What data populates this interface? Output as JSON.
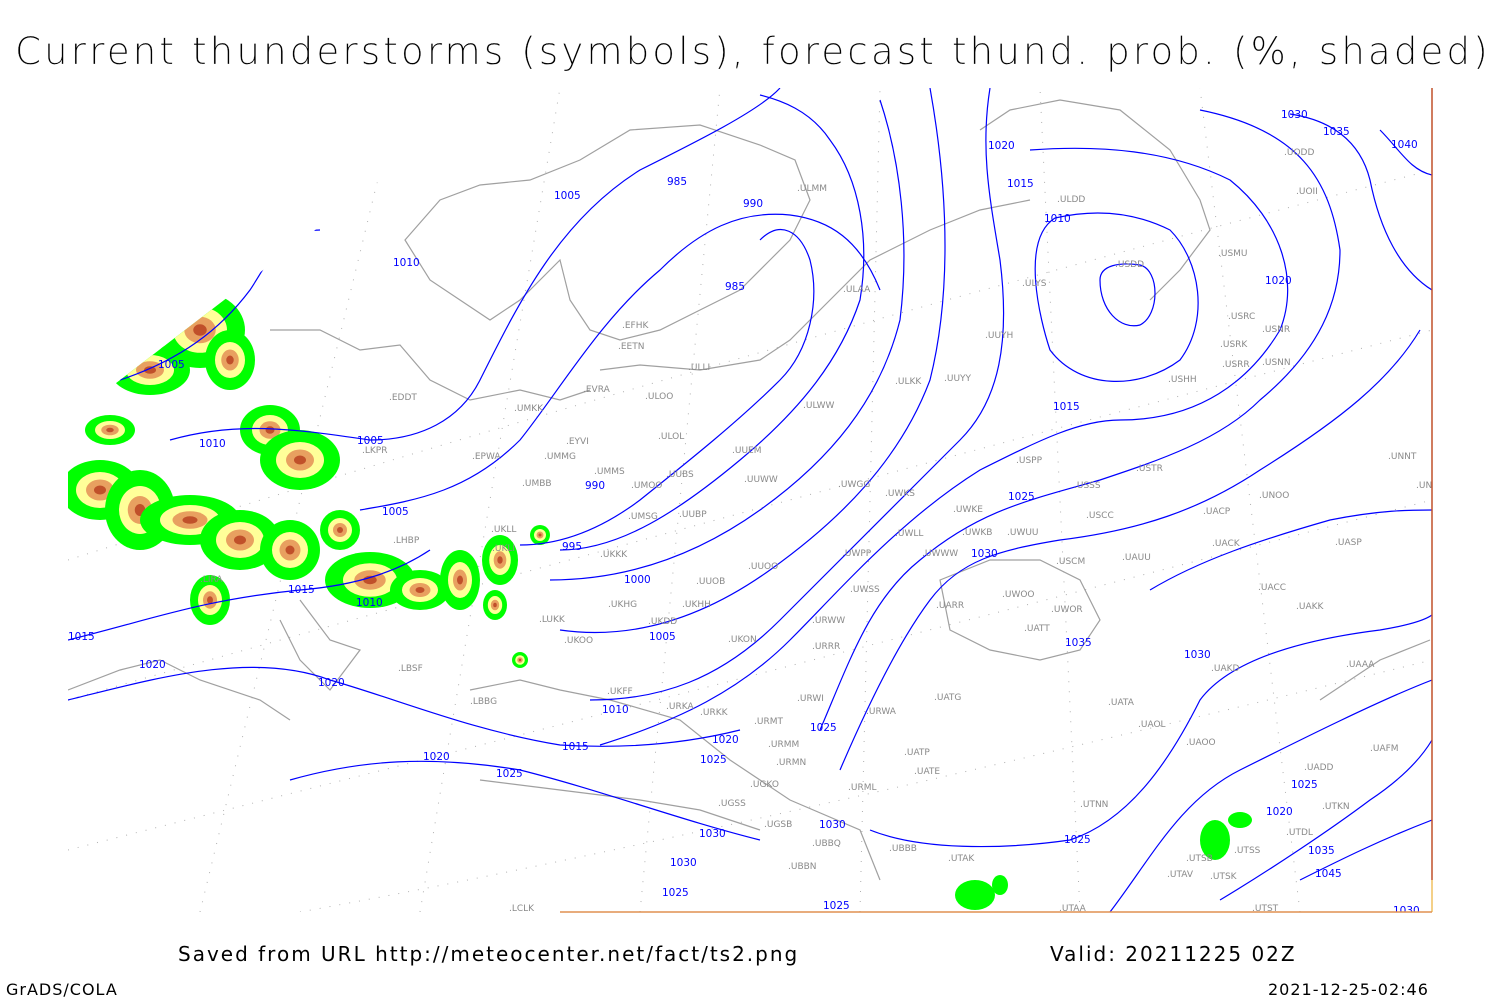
{
  "title": "Current thunderstorms (symbols), forecast thund. prob. (%, shaded)",
  "footer": {
    "saved_from": "Saved from URL http://meteocenter.net/fact/ts2.png",
    "valid": "Valid: 20211225 02Z",
    "software": "GrADS/COLA",
    "timestamp": "2021-12-25-02:46"
  },
  "colors": {
    "isobar": "#0000ff",
    "coastline": "#a0a0a0",
    "graticule": "#a0a0a0",
    "prob_low": "#00ff00",
    "prob_mid": "#ffff99",
    "prob_high": "#e8a060",
    "prob_max": "#c0502a"
  },
  "isobar_labels": [
    "1005",
    "985",
    "990",
    "1010",
    "985",
    "1020",
    "1015",
    "1010",
    "1020",
    "1015",
    "1030",
    "1035",
    "1040",
    "1005",
    "1010",
    "1005",
    "1005",
    "990",
    "995",
    "1000",
    "1025",
    "1030",
    "1035",
    "1030",
    "1015",
    "1010",
    "1015",
    "1020",
    "1005",
    "1020",
    "1010",
    "1015",
    "1020",
    "1025",
    "1025",
    "1020",
    "1025",
    "1030",
    "1030",
    "1030",
    "1025",
    "1025",
    "1025",
    "1025",
    "1020",
    "1035",
    "1045",
    "1030"
  ],
  "stations": [
    "ULMM",
    "ULDD",
    "UODD",
    "UOII",
    "USMU",
    "USDD",
    "ULYS",
    "ULAA",
    "EFHK",
    "EETN",
    "UUYH",
    "USRC",
    "USRK",
    "USNR",
    "USRR",
    "USNN",
    "USHH",
    "ULLI",
    "EVRA",
    "ULOO",
    "ULKK",
    "UUYY",
    "EDDT",
    "UMKK",
    "ULWW",
    "EYVI",
    "ULOL",
    "UMMG",
    "UUEM",
    "EPWA",
    "LKPR",
    "UMMS",
    "UMOO",
    "UUBS",
    "UUWW",
    "USSS",
    "USTR",
    "USPP",
    "UNNT",
    "UNBB",
    "UMBB",
    "UWGG",
    "UWKS",
    "UNOO",
    "UMSG",
    "UUBP",
    "UWKE",
    "UACP",
    "UKLL",
    "UWKB",
    "UWUU",
    "USCC",
    "UKLI",
    "LHBP",
    "UWLL",
    "UWPP",
    "UWWW",
    "USCM",
    "UAUU",
    "UACK",
    "UASP",
    "UKKK",
    "UUOO",
    "UUOB",
    "LIRA",
    "UWSS",
    "UACC",
    "UKHH",
    "UKDD",
    "UKHG",
    "UARR",
    "UWOO",
    "UWOR",
    "UAKK",
    "LUKK",
    "URWW",
    "UATT",
    "UKOO",
    "UKON",
    "URRR",
    "UAKD",
    "UAAA",
    "LBSF",
    "LBBG",
    "UKFF",
    "URKA",
    "URKK",
    "URWI",
    "URMT",
    "UATG",
    "UATA",
    "UAOL",
    "URWA",
    "URMM",
    "URMN",
    "UATE",
    "UAOO",
    "UADD",
    "UAFM",
    "UATP",
    "URML",
    "UGKO",
    "UGSS",
    "UGSB",
    "UBBQ",
    "UTNN",
    "UTKN",
    "UTDL",
    "UTSS",
    "UTSB",
    "UTSK",
    "UTAV",
    "UBBN",
    "UBBB",
    "UTAK",
    "UTAA",
    "UTST",
    "LCLK"
  ]
}
